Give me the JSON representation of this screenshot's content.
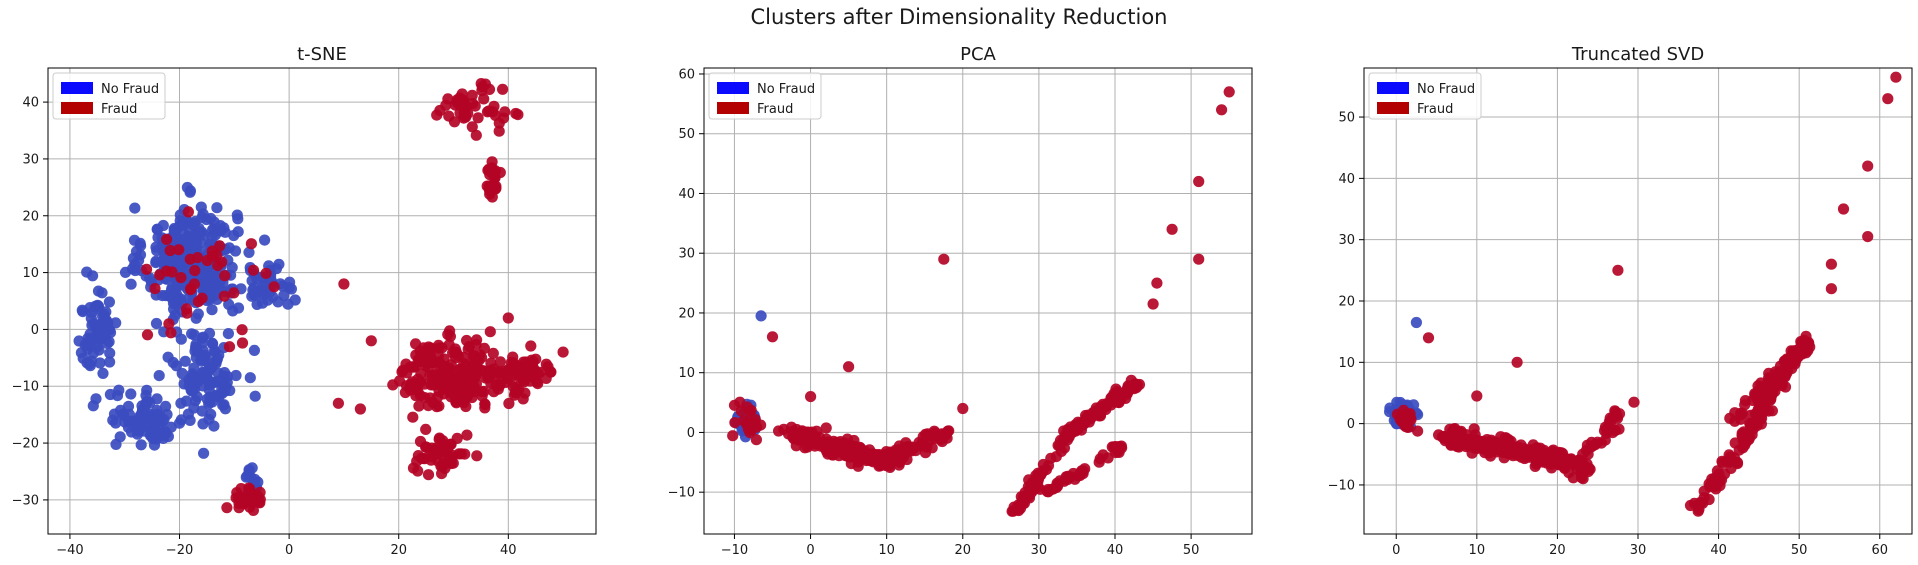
{
  "figure": {
    "title": "Clusters after Dimensionality Reduction"
  },
  "colors": {
    "no_fraud": "#3b4cc0",
    "fraud": "#b40426",
    "legend_no_fraud": "#0a0aff",
    "legend_fraud": "#b30000",
    "grid": "#b0b0b0"
  },
  "chart_data": [
    {
      "type": "scatter",
      "title": "t-SNE",
      "xlim": [
        -44,
        56
      ],
      "ylim": [
        -36,
        46
      ],
      "xticks": [
        -40,
        -20,
        0,
        20,
        40
      ],
      "yticks": [
        -30,
        -20,
        -10,
        0,
        10,
        20,
        30,
        40
      ],
      "grid": true,
      "legend": {
        "placement": "top-left",
        "entries": [
          "No Fraud",
          "Fraud"
        ]
      },
      "clusters": [
        {
          "class": "No Fraud",
          "center": [
            -18,
            12
          ],
          "spread": [
            7,
            8
          ],
          "count": 320
        },
        {
          "class": "No Fraud",
          "center": [
            -35,
            0
          ],
          "spread": [
            3,
            6
          ],
          "count": 70
        },
        {
          "class": "No Fraud",
          "center": [
            -26,
            -16
          ],
          "spread": [
            6,
            4
          ],
          "count": 80
        },
        {
          "class": "No Fraud",
          "center": [
            -15,
            -8
          ],
          "spread": [
            5,
            7
          ],
          "count": 110
        },
        {
          "class": "No Fraud",
          "center": [
            -4,
            8
          ],
          "spread": [
            4,
            3
          ],
          "count": 40
        },
        {
          "class": "No Fraud",
          "center": [
            -7,
            -26
          ],
          "spread": [
            1,
            2
          ],
          "count": 10
        },
        {
          "class": "Fraud",
          "center": [
            30,
            -8
          ],
          "spread": [
            8,
            5
          ],
          "count": 200
        },
        {
          "class": "Fraud",
          "center": [
            43,
            -8
          ],
          "spread": [
            5,
            3
          ],
          "count": 60
        },
        {
          "class": "Fraud",
          "center": [
            28,
            -22
          ],
          "spread": [
            4,
            3
          ],
          "count": 50
        },
        {
          "class": "Fraud",
          "center": [
            -8,
            -30
          ],
          "spread": [
            3,
            2
          ],
          "count": 30
        },
        {
          "class": "Fraud",
          "center": [
            33,
            39
          ],
          "spread": [
            5,
            3
          ],
          "count": 50
        },
        {
          "class": "Fraud",
          "center": [
            37,
            26
          ],
          "spread": [
            1,
            3
          ],
          "count": 30
        },
        {
          "class": "Fraud",
          "center": [
            -14,
            10
          ],
          "spread": [
            9,
            8
          ],
          "count": 40
        }
      ],
      "points": [
        {
          "class": "Fraud",
          "x": 40,
          "y": 2
        },
        {
          "class": "Fraud",
          "x": 10,
          "y": 8
        },
        {
          "class": "Fraud",
          "x": 9,
          "y": -13
        },
        {
          "class": "Fraud",
          "x": 13,
          "y": -14
        },
        {
          "class": "Fraud",
          "x": 15,
          "y": -2
        },
        {
          "class": "Fraud",
          "x": 50,
          "y": -4
        },
        {
          "class": "No Fraud",
          "x": -7,
          "y": -26
        }
      ]
    },
    {
      "type": "scatter",
      "title": "PCA",
      "xlim": [
        -14,
        58
      ],
      "ylim": [
        -17,
        61
      ],
      "xticks": [
        -10,
        0,
        10,
        20,
        30,
        40,
        50
      ],
      "yticks": [
        -10,
        0,
        10,
        20,
        30,
        40,
        50,
        60
      ],
      "grid": true,
      "legend": {
        "placement": "top-left",
        "entries": [
          "No Fraud",
          "Fraud"
        ]
      },
      "clusters": [
        {
          "class": "No Fraud",
          "center": [
            -8.5,
            2
          ],
          "spread": [
            1,
            2
          ],
          "count": 60
        },
        {
          "class": "Fraud",
          "center": [
            -8,
            2
          ],
          "spread": [
            1.5,
            2.5
          ],
          "count": 20
        }
      ],
      "bands": [
        {
          "class": "Fraud",
          "from": [
            -3,
            0
          ],
          "to": [
            10,
            -5
          ],
          "width": 1.5,
          "count": 150
        },
        {
          "class": "Fraud",
          "from": [
            10,
            -5
          ],
          "to": [
            18,
            0
          ],
          "width": 1.5,
          "count": 60
        },
        {
          "class": "Fraud",
          "from": [
            27,
            -13
          ],
          "to": [
            34,
            0
          ],
          "width": 0.8,
          "count": 60
        },
        {
          "class": "Fraud",
          "from": [
            34,
            0
          ],
          "to": [
            43,
            8
          ],
          "width": 0.8,
          "count": 100
        },
        {
          "class": "Fraud",
          "from": [
            31,
            -10
          ],
          "to": [
            41,
            -2
          ],
          "width": 0.8,
          "count": 40
        }
      ],
      "points": [
        {
          "class": "Fraud",
          "x": 55,
          "y": 57
        },
        {
          "class": "Fraud",
          "x": 54,
          "y": 54
        },
        {
          "class": "Fraud",
          "x": 51,
          "y": 42
        },
        {
          "class": "Fraud",
          "x": 47.5,
          "y": 34
        },
        {
          "class": "Fraud",
          "x": 51,
          "y": 29
        },
        {
          "class": "Fraud",
          "x": 45.5,
          "y": 25
        },
        {
          "class": "Fraud",
          "x": 45,
          "y": 21.5
        },
        {
          "class": "Fraud",
          "x": 17.5,
          "y": 29
        },
        {
          "class": "Fraud",
          "x": 20,
          "y": 4
        },
        {
          "class": "Fraud",
          "x": -5,
          "y": 16
        },
        {
          "class": "No Fraud",
          "x": -6.5,
          "y": 19.5
        },
        {
          "class": "Fraud",
          "x": 5,
          "y": 11
        },
        {
          "class": "Fraud",
          "x": 0,
          "y": 6
        }
      ]
    },
    {
      "type": "scatter",
      "title": "Truncated SVD",
      "xlim": [
        -4,
        64
      ],
      "ylim": [
        -18,
        58
      ],
      "xticks": [
        0,
        10,
        20,
        30,
        40,
        50,
        60
      ],
      "yticks": [
        -10,
        0,
        10,
        20,
        30,
        40,
        50
      ],
      "grid": true,
      "legend": {
        "placement": "top-left",
        "entries": [
          "No Fraud",
          "Fraud"
        ]
      },
      "clusters": [
        {
          "class": "No Fraud",
          "center": [
            0.8,
            1.5
          ],
          "spread": [
            1.2,
            2
          ],
          "count": 60
        },
        {
          "class": "Fraud",
          "center": [
            1,
            1
          ],
          "spread": [
            1.5,
            2
          ],
          "count": 20
        }
      ],
      "bands": [
        {
          "class": "Fraud",
          "from": [
            6,
            -2
          ],
          "to": [
            21,
            -6
          ],
          "width": 1.5,
          "count": 180
        },
        {
          "class": "Fraud",
          "from": [
            21,
            -6
          ],
          "to": [
            24,
            -8
          ],
          "width": 1.5,
          "count": 30
        },
        {
          "class": "Fraud",
          "from": [
            23,
            -6
          ],
          "to": [
            28,
            2
          ],
          "width": 1,
          "count": 30
        },
        {
          "class": "Fraud",
          "from": [
            37,
            -14
          ],
          "to": [
            43,
            -3
          ],
          "width": 0.9,
          "count": 50
        },
        {
          "class": "Fraud",
          "from": [
            43,
            -3
          ],
          "to": [
            51,
            14
          ],
          "width": 0.9,
          "count": 100
        },
        {
          "class": "Fraud",
          "from": [
            42,
            1
          ],
          "to": [
            50,
            12
          ],
          "width": 0.9,
          "count": 60
        }
      ],
      "points": [
        {
          "class": "Fraud",
          "x": 62,
          "y": 56.5
        },
        {
          "class": "Fraud",
          "x": 61,
          "y": 53
        },
        {
          "class": "Fraud",
          "x": 58.5,
          "y": 42
        },
        {
          "class": "Fraud",
          "x": 55.5,
          "y": 35
        },
        {
          "class": "Fraud",
          "x": 58.5,
          "y": 30.5
        },
        {
          "class": "Fraud",
          "x": 54,
          "y": 26
        },
        {
          "class": "Fraud",
          "x": 54,
          "y": 22
        },
        {
          "class": "Fraud",
          "x": 27.5,
          "y": 25
        },
        {
          "class": "Fraud",
          "x": 29.5,
          "y": 3.5
        },
        {
          "class": "Fraud",
          "x": 4,
          "y": 14
        },
        {
          "class": "No Fraud",
          "x": 2.5,
          "y": 16.5
        },
        {
          "class": "Fraud",
          "x": 15,
          "y": 10
        },
        {
          "class": "Fraud",
          "x": 10,
          "y": 4.5
        }
      ]
    }
  ]
}
